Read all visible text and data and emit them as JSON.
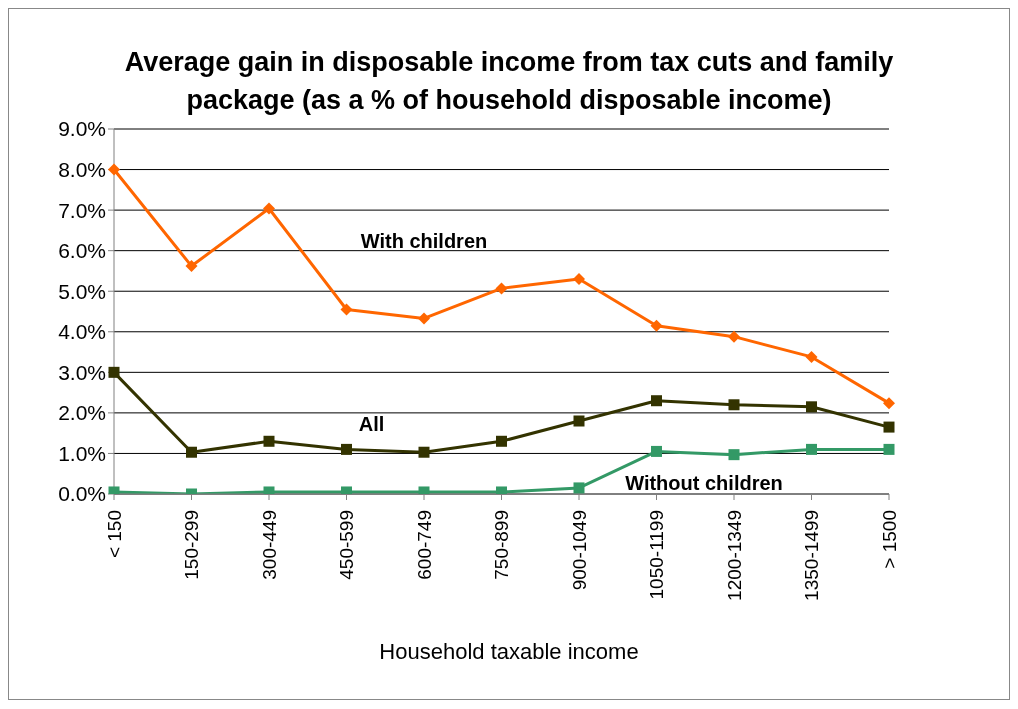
{
  "chart_data": {
    "type": "line",
    "title": "Average gain in disposable income from tax cuts and family package (as a % of household disposable income)",
    "xlabel": "Household taxable income",
    "categories": [
      "< 150",
      "150-299",
      "300-449",
      "450-599",
      "600-749",
      "750-899",
      "900-1049",
      "1050-1199",
      "1200-1349",
      "1350-1499",
      "> 1500"
    ],
    "series": [
      {
        "name": "With children",
        "color": "#ff6600",
        "marker": "diamond",
        "values": [
          8.0,
          5.62,
          7.04,
          4.55,
          4.33,
          5.07,
          5.3,
          4.15,
          3.88,
          3.38,
          2.24
        ]
      },
      {
        "name": "All",
        "color": "#333300",
        "marker": "square",
        "values": [
          3.0,
          1.03,
          1.3,
          1.1,
          1.03,
          1.3,
          1.8,
          2.3,
          2.2,
          2.15,
          1.65
        ]
      },
      {
        "name": "Without children",
        "color": "#339966",
        "marker": "square",
        "values": [
          0.05,
          0.0,
          0.05,
          0.05,
          0.05,
          0.05,
          0.15,
          1.05,
          0.97,
          1.1,
          1.1
        ]
      }
    ],
    "ylim": [
      0,
      9
    ],
    "yticks": [
      {
        "value": 0,
        "label": "0.0%"
      },
      {
        "value": 1,
        "label": "1.0%"
      },
      {
        "value": 2,
        "label": "2.0%"
      },
      {
        "value": 3,
        "label": "3.0%"
      },
      {
        "value": 4,
        "label": "4.0%"
      },
      {
        "value": 5,
        "label": "5.0%"
      },
      {
        "value": 6,
        "label": "6.0%"
      },
      {
        "value": 7,
        "label": "7.0%"
      },
      {
        "value": 8,
        "label": "8.0%"
      },
      {
        "value": 9,
        "label": "9.0%"
      }
    ],
    "grid": "y",
    "legend": false,
    "line_style": "solid"
  }
}
